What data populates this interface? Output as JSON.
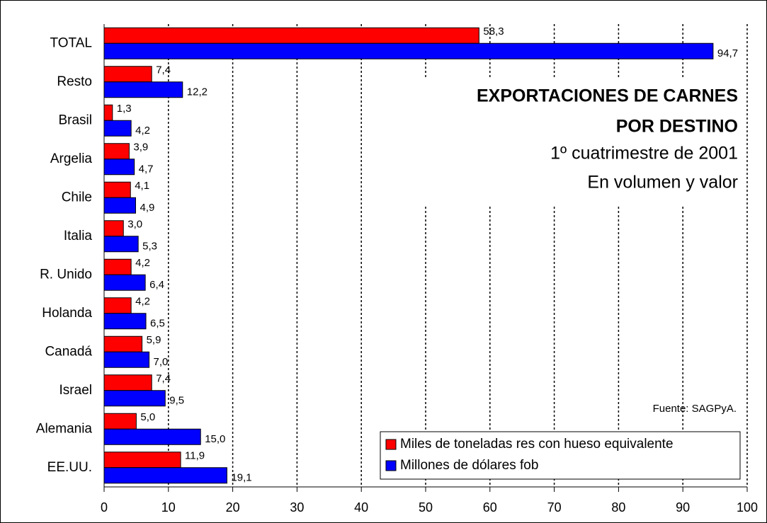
{
  "chart_data": {
    "type": "bar",
    "orientation": "horizontal",
    "title_lines": [
      "EXPORTACIONES DE CARNES",
      "POR DESTINO"
    ],
    "subtitle_lines": [
      "1º cuatrimestre de 2001",
      "En volumen y valor"
    ],
    "annotation": "Fuente: SAGPyA.",
    "categories": [
      "TOTAL",
      "Resto",
      "Brasil",
      "Argelia",
      "Chile",
      "Italia",
      "R. Unido",
      "Holanda",
      "Canadá",
      "Israel",
      "Alemania",
      "EE.UU."
    ],
    "series": [
      {
        "name": "Miles de toneladas res con hueso equivalente",
        "color": "#ff0000",
        "values": [
          58.3,
          7.4,
          1.3,
          3.9,
          4.1,
          3.0,
          4.2,
          4.2,
          5.9,
          7.4,
          5.0,
          11.9
        ],
        "value_labels": [
          "58,3",
          "7,4",
          "1,3",
          "3,9",
          "4,1",
          "3,0",
          "4,2",
          "4,2",
          "5,9",
          "7,4",
          "5,0",
          "11,9"
        ]
      },
      {
        "name": "Millones de dólares fob",
        "color": "#0000ff",
        "values": [
          94.7,
          12.2,
          4.2,
          4.7,
          4.9,
          5.3,
          6.4,
          6.5,
          7.0,
          9.5,
          15.0,
          19.1
        ],
        "value_labels": [
          "94,7",
          "12,2",
          "4,2",
          "4,7",
          "4,9",
          "5,3",
          "6,4",
          "6,5",
          "7,0",
          "9,5",
          "15,0",
          "19,1"
        ]
      }
    ],
    "xlim": [
      0,
      100
    ],
    "xticks": [
      0,
      10,
      20,
      30,
      40,
      50,
      60,
      70,
      80,
      90,
      100
    ],
    "grid": true,
    "legend": "lower right"
  }
}
